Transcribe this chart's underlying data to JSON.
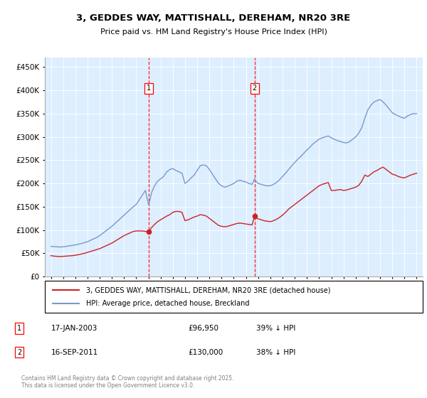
{
  "title_line1": "3, GEDDES WAY, MATTISHALL, DEREHAM, NR20 3RE",
  "title_line2": "Price paid vs. HM Land Registry's House Price Index (HPI)",
  "ytick_values": [
    0,
    50000,
    100000,
    150000,
    200000,
    250000,
    300000,
    350000,
    400000,
    450000
  ],
  "ylim": [
    0,
    470000
  ],
  "xlim_start": 1994.5,
  "xlim_end": 2025.5,
  "bg_color": "#ddeeff",
  "hpi_color": "#7799cc",
  "paid_color": "#cc2222",
  "marker1_x": 2003.04,
  "marker1_y": 96950,
  "marker1_label": "1",
  "marker2_x": 2011.71,
  "marker2_y": 130000,
  "marker2_label": "2",
  "legend_line1": "3, GEDDES WAY, MATTISHALL, DEREHAM, NR20 3RE (detached house)",
  "legend_line2": "HPI: Average price, detached house, Breckland",
  "footnote": "Contains HM Land Registry data © Crown copyright and database right 2025.\nThis data is licensed under the Open Government Licence v3.0.",
  "hpi_data": [
    [
      1995.0,
      65000
    ],
    [
      1995.25,
      64500
    ],
    [
      1995.5,
      64000
    ],
    [
      1995.75,
      63500
    ],
    [
      1996.0,
      64000
    ],
    [
      1996.25,
      65000
    ],
    [
      1996.5,
      66000
    ],
    [
      1996.75,
      67000
    ],
    [
      1997.0,
      68000
    ],
    [
      1997.25,
      69500
    ],
    [
      1997.5,
      71000
    ],
    [
      1997.75,
      73000
    ],
    [
      1998.0,
      75000
    ],
    [
      1998.25,
      78000
    ],
    [
      1998.5,
      81000
    ],
    [
      1998.75,
      84000
    ],
    [
      1999.0,
      88000
    ],
    [
      1999.25,
      93000
    ],
    [
      1999.5,
      98000
    ],
    [
      1999.75,
      103000
    ],
    [
      2000.0,
      108000
    ],
    [
      2000.25,
      114000
    ],
    [
      2000.5,
      120000
    ],
    [
      2000.75,
      126000
    ],
    [
      2001.0,
      132000
    ],
    [
      2001.25,
      138000
    ],
    [
      2001.5,
      144000
    ],
    [
      2001.75,
      150000
    ],
    [
      2002.0,
      155000
    ],
    [
      2002.25,
      165000
    ],
    [
      2002.5,
      175000
    ],
    [
      2002.75,
      185000
    ],
    [
      2003.0,
      155000
    ],
    [
      2003.04,
      155000
    ],
    [
      2003.25,
      180000
    ],
    [
      2003.5,
      195000
    ],
    [
      2003.75,
      205000
    ],
    [
      2004.0,
      210000
    ],
    [
      2004.25,
      215000
    ],
    [
      2004.5,
      225000
    ],
    [
      2004.75,
      230000
    ],
    [
      2005.0,
      232000
    ],
    [
      2005.25,
      228000
    ],
    [
      2005.5,
      225000
    ],
    [
      2005.75,
      222000
    ],
    [
      2006.0,
      200000
    ],
    [
      2006.25,
      205000
    ],
    [
      2006.5,
      212000
    ],
    [
      2006.75,
      218000
    ],
    [
      2007.0,
      228000
    ],
    [
      2007.25,
      238000
    ],
    [
      2007.5,
      240000
    ],
    [
      2007.75,
      238000
    ],
    [
      2008.0,
      230000
    ],
    [
      2008.25,
      220000
    ],
    [
      2008.5,
      210000
    ],
    [
      2008.75,
      200000
    ],
    [
      2009.0,
      195000
    ],
    [
      2009.25,
      192000
    ],
    [
      2009.5,
      194000
    ],
    [
      2009.75,
      197000
    ],
    [
      2010.0,
      200000
    ],
    [
      2010.25,
      205000
    ],
    [
      2010.5,
      207000
    ],
    [
      2010.75,
      205000
    ],
    [
      2011.0,
      203000
    ],
    [
      2011.25,
      200000
    ],
    [
      2011.5,
      198000
    ],
    [
      2011.71,
      210000
    ],
    [
      2011.75,
      207000
    ],
    [
      2012.0,
      200000
    ],
    [
      2012.25,
      198000
    ],
    [
      2012.5,
      196000
    ],
    [
      2012.75,
      195000
    ],
    [
      2013.0,
      195000
    ],
    [
      2013.25,
      198000
    ],
    [
      2013.5,
      202000
    ],
    [
      2013.75,
      208000
    ],
    [
      2014.0,
      215000
    ],
    [
      2014.25,
      222000
    ],
    [
      2014.5,
      230000
    ],
    [
      2014.75,
      238000
    ],
    [
      2015.0,
      245000
    ],
    [
      2015.25,
      252000
    ],
    [
      2015.5,
      258000
    ],
    [
      2015.75,
      265000
    ],
    [
      2016.0,
      272000
    ],
    [
      2016.25,
      278000
    ],
    [
      2016.5,
      285000
    ],
    [
      2016.75,
      290000
    ],
    [
      2017.0,
      295000
    ],
    [
      2017.25,
      298000
    ],
    [
      2017.5,
      300000
    ],
    [
      2017.75,
      302000
    ],
    [
      2018.0,
      298000
    ],
    [
      2018.25,
      295000
    ],
    [
      2018.5,
      292000
    ],
    [
      2018.75,
      290000
    ],
    [
      2019.0,
      288000
    ],
    [
      2019.25,
      287000
    ],
    [
      2019.5,
      290000
    ],
    [
      2019.75,
      295000
    ],
    [
      2020.0,
      300000
    ],
    [
      2020.25,
      308000
    ],
    [
      2020.5,
      320000
    ],
    [
      2020.75,
      340000
    ],
    [
      2021.0,
      358000
    ],
    [
      2021.25,
      368000
    ],
    [
      2021.5,
      375000
    ],
    [
      2021.75,
      378000
    ],
    [
      2022.0,
      380000
    ],
    [
      2022.25,
      375000
    ],
    [
      2022.5,
      368000
    ],
    [
      2022.75,
      360000
    ],
    [
      2023.0,
      352000
    ],
    [
      2023.25,
      348000
    ],
    [
      2023.5,
      345000
    ],
    [
      2023.75,
      342000
    ],
    [
      2024.0,
      340000
    ],
    [
      2024.25,
      345000
    ],
    [
      2024.5,
      348000
    ],
    [
      2024.75,
      350000
    ],
    [
      2025.0,
      350000
    ]
  ],
  "paid_data": [
    [
      1995.0,
      45000
    ],
    [
      1995.25,
      44000
    ],
    [
      1995.5,
      43500
    ],
    [
      1995.75,
      43000
    ],
    [
      1996.0,
      43500
    ],
    [
      1996.25,
      44000
    ],
    [
      1996.5,
      44500
    ],
    [
      1996.75,
      45000
    ],
    [
      1997.0,
      46000
    ],
    [
      1997.25,
      47000
    ],
    [
      1997.5,
      48500
    ],
    [
      1997.75,
      50000
    ],
    [
      1998.0,
      52000
    ],
    [
      1998.25,
      54000
    ],
    [
      1998.5,
      56000
    ],
    [
      1998.75,
      58000
    ],
    [
      1999.0,
      60000
    ],
    [
      1999.25,
      63000
    ],
    [
      1999.5,
      66000
    ],
    [
      1999.75,
      69000
    ],
    [
      2000.0,
      72000
    ],
    [
      2000.25,
      76000
    ],
    [
      2000.5,
      80000
    ],
    [
      2000.75,
      84000
    ],
    [
      2001.0,
      88000
    ],
    [
      2001.25,
      91000
    ],
    [
      2001.5,
      94000
    ],
    [
      2001.75,
      97000
    ],
    [
      2002.0,
      98000
    ],
    [
      2002.25,
      98000
    ],
    [
      2002.5,
      98000
    ],
    [
      2002.75,
      97000
    ],
    [
      2003.04,
      96950
    ],
    [
      2003.25,
      105000
    ],
    [
      2003.5,
      112000
    ],
    [
      2003.75,
      118000
    ],
    [
      2004.0,
      122000
    ],
    [
      2004.25,
      126000
    ],
    [
      2004.5,
      130000
    ],
    [
      2004.75,
      133000
    ],
    [
      2005.0,
      138000
    ],
    [
      2005.25,
      140000
    ],
    [
      2005.5,
      140000
    ],
    [
      2005.75,
      138000
    ],
    [
      2006.0,
      120000
    ],
    [
      2006.25,
      122000
    ],
    [
      2006.5,
      125000
    ],
    [
      2006.75,
      128000
    ],
    [
      2007.0,
      130000
    ],
    [
      2007.25,
      133000
    ],
    [
      2007.5,
      132000
    ],
    [
      2007.75,
      130000
    ],
    [
      2008.0,
      125000
    ],
    [
      2008.25,
      120000
    ],
    [
      2008.5,
      115000
    ],
    [
      2008.75,
      110000
    ],
    [
      2009.0,
      108000
    ],
    [
      2009.25,
      107000
    ],
    [
      2009.5,
      108000
    ],
    [
      2009.75,
      110000
    ],
    [
      2010.0,
      112000
    ],
    [
      2010.25,
      114000
    ],
    [
      2010.5,
      115000
    ],
    [
      2010.75,
      114000
    ],
    [
      2011.0,
      113000
    ],
    [
      2011.25,
      112000
    ],
    [
      2011.5,
      111000
    ],
    [
      2011.71,
      130000
    ],
    [
      2011.75,
      128000
    ],
    [
      2012.0,
      124000
    ],
    [
      2012.25,
      122000
    ],
    [
      2012.5,
      120000
    ],
    [
      2012.75,
      119000
    ],
    [
      2013.0,
      118000
    ],
    [
      2013.25,
      120000
    ],
    [
      2013.5,
      123000
    ],
    [
      2013.75,
      127000
    ],
    [
      2014.0,
      132000
    ],
    [
      2014.25,
      138000
    ],
    [
      2014.5,
      145000
    ],
    [
      2014.75,
      150000
    ],
    [
      2015.0,
      155000
    ],
    [
      2015.25,
      160000
    ],
    [
      2015.5,
      165000
    ],
    [
      2015.75,
      170000
    ],
    [
      2016.0,
      175000
    ],
    [
      2016.25,
      180000
    ],
    [
      2016.5,
      185000
    ],
    [
      2016.75,
      190000
    ],
    [
      2017.0,
      195000
    ],
    [
      2017.25,
      198000
    ],
    [
      2017.5,
      200000
    ],
    [
      2017.75,
      202000
    ],
    [
      2018.0,
      185000
    ],
    [
      2018.25,
      185000
    ],
    [
      2018.5,
      186000
    ],
    [
      2018.75,
      187000
    ],
    [
      2019.0,
      185000
    ],
    [
      2019.25,
      186000
    ],
    [
      2019.5,
      188000
    ],
    [
      2019.75,
      190000
    ],
    [
      2020.0,
      192000
    ],
    [
      2020.25,
      196000
    ],
    [
      2020.5,
      205000
    ],
    [
      2020.75,
      218000
    ],
    [
      2021.0,
      215000
    ],
    [
      2021.25,
      220000
    ],
    [
      2021.5,
      225000
    ],
    [
      2021.75,
      228000
    ],
    [
      2022.0,
      232000
    ],
    [
      2022.25,
      235000
    ],
    [
      2022.5,
      230000
    ],
    [
      2022.75,
      225000
    ],
    [
      2023.0,
      220000
    ],
    [
      2023.25,
      218000
    ],
    [
      2023.5,
      215000
    ],
    [
      2023.75,
      213000
    ],
    [
      2024.0,
      212000
    ],
    [
      2024.25,
      215000
    ],
    [
      2024.5,
      218000
    ],
    [
      2024.75,
      220000
    ],
    [
      2025.0,
      222000
    ]
  ]
}
